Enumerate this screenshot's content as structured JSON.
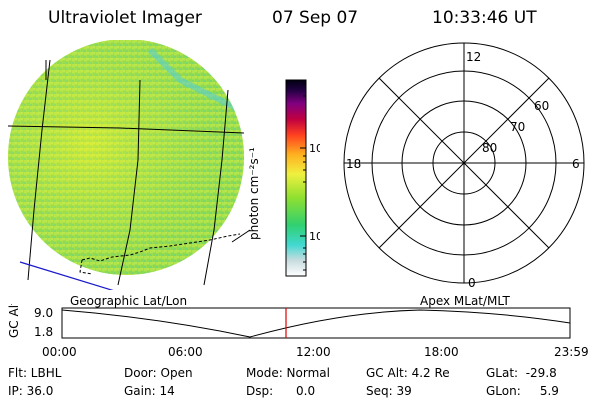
{
  "header": {
    "title": "Ultraviolet Imager",
    "date": "07 Sep 07",
    "time": "10:33:46 UT"
  },
  "globe_panel": {
    "caption": "Geographic Lat/Lon"
  },
  "polar_panel": {
    "caption": "Apex  MLat/MLT",
    "mlt_labels": {
      "top": "12",
      "bottom": "0",
      "left": "18",
      "right": "6"
    },
    "lat_rings": [
      "80",
      "70",
      "60"
    ]
  },
  "colorbar": {
    "unit": "photon cm⁻²s⁻¹",
    "ticks": [
      "100",
      "10"
    ]
  },
  "altitude_plot": {
    "axis_label": "GC Alt",
    "y_ticks": [
      "9.0",
      "1.8"
    ],
    "x_ticks": [
      "00:00",
      "06:00",
      "12:00",
      "18:00",
      "23:59"
    ],
    "marker_color": "#e00000"
  },
  "footer": {
    "flt": "Flt: LBHL",
    "ip": "IP: 36.0",
    "door": "Door: Open",
    "gain": "Gain: 14",
    "mode": "Mode: Normal",
    "dsp": "Dsp:      0.0",
    "gc_alt": "GC Alt: 4.2 Re",
    "seq": "Seq: 39",
    "glat": "GLat:  -29.8",
    "glon": "GLon:     5.9"
  },
  "colors": {
    "ground_track": "#1a1acc",
    "globe_green": "#9de040"
  }
}
